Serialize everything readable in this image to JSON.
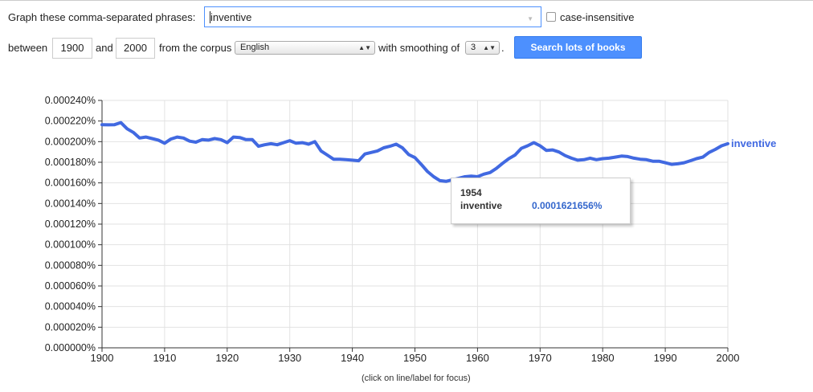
{
  "form": {
    "phrases_label": "Graph these comma-separated phrases:",
    "query_value": "inventive",
    "case_label": "case-insensitive",
    "between_label": "between",
    "year_start": "1900",
    "and_label": "and",
    "year_end": "2000",
    "corpus_label": "from the corpus",
    "corpus_value": "English",
    "smoothing_label": "with smoothing of",
    "smoothing_value": "3",
    "dot": ".",
    "search_button": "Search lots of books"
  },
  "chart_note": "(click on line/label for focus)",
  "tooltip": {
    "year": "1954",
    "term": "inventive",
    "value": "0.0001621656%"
  },
  "colors": {
    "line": "#4169e1",
    "button": "#4d90fe",
    "tooltip_value": "#3366cc"
  },
  "chart_data": {
    "type": "line",
    "ylim": [
      0,
      0.00024
    ],
    "xlim": [
      1900,
      2000
    ],
    "grid": true,
    "legend_position": "right",
    "xticks": [
      "1900",
      "1910",
      "1920",
      "1930",
      "1940",
      "1950",
      "1960",
      "1970",
      "1980",
      "1990",
      "2000"
    ],
    "yticks": [
      "0.000000%",
      "0.000020%",
      "0.000040%",
      "0.000060%",
      "0.000080%",
      "0.000100%",
      "0.000120%",
      "0.000140%",
      "0.000160%",
      "0.000180%",
      "0.000200%",
      "0.000220%",
      "0.000240%"
    ],
    "series": [
      {
        "name": "inventive",
        "x": [
          1900,
          1901,
          1902,
          1903,
          1904,
          1905,
          1906,
          1907,
          1908,
          1909,
          1910,
          1911,
          1912,
          1913,
          1914,
          1915,
          1916,
          1917,
          1918,
          1919,
          1920,
          1921,
          1922,
          1923,
          1924,
          1925,
          1926,
          1927,
          1928,
          1929,
          1930,
          1931,
          1932,
          1933,
          1934,
          1935,
          1936,
          1937,
          1938,
          1939,
          1940,
          1941,
          1942,
          1943,
          1944,
          1945,
          1946,
          1947,
          1948,
          1949,
          1950,
          1951,
          1952,
          1953,
          1954,
          1955,
          1956,
          1957,
          1958,
          1959,
          1960,
          1961,
          1962,
          1963,
          1964,
          1965,
          1966,
          1967,
          1968,
          1969,
          1970,
          1971,
          1972,
          1973,
          1974,
          1975,
          1976,
          1977,
          1978,
          1979,
          1980,
          1981,
          1982,
          1983,
          1984,
          1985,
          1986,
          1987,
          1988,
          1989,
          1990,
          1991,
          1992,
          1993,
          1994,
          1995,
          1996,
          1997,
          1998,
          1999,
          2000
        ],
        "y": [
          0.0002165,
          0.0002163,
          0.0002165,
          0.0002185,
          0.0002125,
          0.000209,
          0.0002035,
          0.0002045,
          0.000203,
          0.0002015,
          0.0001985,
          0.0002025,
          0.0002045,
          0.0002035,
          0.0002005,
          0.0001995,
          0.000202,
          0.0002015,
          0.000203,
          0.000202,
          0.000199,
          0.0002045,
          0.000204,
          0.000202,
          0.000202,
          0.0001955,
          0.000197,
          0.000198,
          0.000197,
          0.000199,
          0.000201,
          0.0001985,
          0.000199,
          0.0001975,
          0.0002,
          0.000191,
          0.000187,
          0.000183,
          0.000183,
          0.0001825,
          0.000182,
          0.0001815,
          0.000188,
          0.0001895,
          0.000191,
          0.000194,
          0.0001955,
          0.0001975,
          0.000194,
          0.0001875,
          0.0001845,
          0.000178,
          0.000171,
          0.000166,
          0.0001621656,
          0.0001615,
          0.000163,
          0.0001645,
          0.000166,
          0.0001665,
          0.000166,
          0.0001685,
          0.00017,
          0.000174,
          0.000179,
          0.0001835,
          0.000187,
          0.0001935,
          0.000196,
          0.000199,
          0.000196,
          0.0001915,
          0.000192,
          0.00019,
          0.0001865,
          0.000184,
          0.000182,
          0.0001825,
          0.000184,
          0.0001825,
          0.0001835,
          0.000184,
          0.000185,
          0.000186,
          0.0001855,
          0.000184,
          0.000183,
          0.0001825,
          0.000181,
          0.000181,
          0.0001795,
          0.000178,
          0.0001785,
          0.0001795,
          0.0001815,
          0.0001835,
          0.000185,
          0.0001895,
          0.0001925,
          0.000196,
          0.000198
        ]
      }
    ]
  }
}
